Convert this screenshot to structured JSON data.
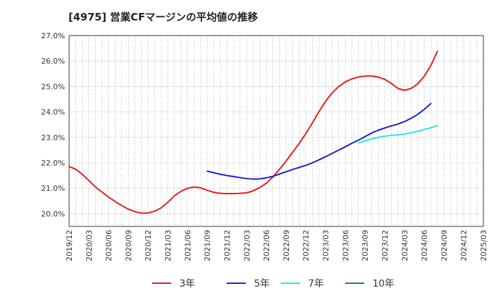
{
  "chart_data": {
    "type": "line",
    "title": "[4975]  営業CFマージンの平均値の推移",
    "xlabel": "",
    "ylabel": "",
    "ylim": [
      19.5,
      27.0
    ],
    "xlim": [
      "2019/12",
      "2025/03"
    ],
    "grid": true,
    "legend_position": "bottom",
    "y_ticks": [
      "20.0%",
      "21.0%",
      "22.0%",
      "23.0%",
      "24.0%",
      "25.0%",
      "26.0%",
      "27.0%"
    ],
    "x_ticks": [
      "2019/12",
      "2020/03",
      "2020/06",
      "2020/09",
      "2020/12",
      "2021/03",
      "2021/06",
      "2021/09",
      "2021/12",
      "2022/03",
      "2022/06",
      "2022/09",
      "2022/12",
      "2023/03",
      "2023/06",
      "2023/09",
      "2023/12",
      "2024/03",
      "2024/06",
      "2024/09",
      "2024/12",
      "2025/03"
    ],
    "series": [
      {
        "name": "3年",
        "color": "#e8191a",
        "points": [
          [
            "2019/12",
            21.85
          ],
          [
            "2020/01",
            21.75
          ],
          [
            "2020/02",
            21.55
          ],
          [
            "2020/03",
            21.3
          ],
          [
            "2020/04",
            21.05
          ],
          [
            "2020/05",
            20.85
          ],
          [
            "2020/06",
            20.65
          ],
          [
            "2020/07",
            20.48
          ],
          [
            "2020/08",
            20.32
          ],
          [
            "2020/09",
            20.18
          ],
          [
            "2020/10",
            20.08
          ],
          [
            "2020/11",
            20.02
          ],
          [
            "2020/12",
            20.03
          ],
          [
            "2021/01",
            20.1
          ],
          [
            "2021/02",
            20.23
          ],
          [
            "2021/03",
            20.45
          ],
          [
            "2021/04",
            20.7
          ],
          [
            "2021/05",
            20.88
          ],
          [
            "2021/06",
            21.0
          ],
          [
            "2021/07",
            21.05
          ],
          [
            "2021/08",
            21.02
          ],
          [
            "2021/09",
            20.92
          ],
          [
            "2021/10",
            20.84
          ],
          [
            "2021/11",
            20.8
          ],
          [
            "2021/12",
            20.79
          ],
          [
            "2022/01",
            20.79
          ],
          [
            "2022/02",
            20.8
          ],
          [
            "2022/03",
            20.82
          ],
          [
            "2022/04",
            20.9
          ],
          [
            "2022/05",
            21.03
          ],
          [
            "2022/06",
            21.2
          ],
          [
            "2022/07",
            21.45
          ],
          [
            "2022/08",
            21.75
          ],
          [
            "2022/09",
            22.07
          ],
          [
            "2022/10",
            22.42
          ],
          [
            "2022/11",
            22.77
          ],
          [
            "2022/12",
            23.15
          ],
          [
            "2023/01",
            23.57
          ],
          [
            "2023/02",
            24.02
          ],
          [
            "2023/03",
            24.42
          ],
          [
            "2023/04",
            24.75
          ],
          [
            "2023/05",
            25.0
          ],
          [
            "2023/06",
            25.18
          ],
          [
            "2023/07",
            25.3
          ],
          [
            "2023/08",
            25.37
          ],
          [
            "2023/09",
            25.41
          ],
          [
            "2023/10",
            25.41
          ],
          [
            "2023/11",
            25.37
          ],
          [
            "2023/12",
            25.28
          ],
          [
            "2024/01",
            25.12
          ],
          [
            "2024/02",
            24.92
          ],
          [
            "2024/03",
            24.85
          ],
          [
            "2024/04",
            24.92
          ],
          [
            "2024/05",
            25.1
          ],
          [
            "2024/06",
            25.4
          ],
          [
            "2024/07",
            25.82
          ],
          [
            "2024/08",
            26.38
          ]
        ]
      },
      {
        "name": "5年",
        "color": "#1a1adb",
        "points": [
          [
            "2021/09",
            21.67
          ],
          [
            "2021/10",
            21.61
          ],
          [
            "2021/11",
            21.55
          ],
          [
            "2021/12",
            21.5
          ],
          [
            "2022/01",
            21.46
          ],
          [
            "2022/02",
            21.42
          ],
          [
            "2022/03",
            21.38
          ],
          [
            "2022/04",
            21.36
          ],
          [
            "2022/05",
            21.37
          ],
          [
            "2022/06",
            21.41
          ],
          [
            "2022/07",
            21.47
          ],
          [
            "2022/08",
            21.56
          ],
          [
            "2022/09",
            21.65
          ],
          [
            "2022/10",
            21.74
          ],
          [
            "2022/11",
            21.82
          ],
          [
            "2022/12",
            21.9
          ],
          [
            "2023/01",
            22.0
          ],
          [
            "2023/02",
            22.12
          ],
          [
            "2023/03",
            22.24
          ],
          [
            "2023/04",
            22.37
          ],
          [
            "2023/05",
            22.5
          ],
          [
            "2023/06",
            22.63
          ],
          [
            "2023/07",
            22.77
          ],
          [
            "2023/08",
            22.89
          ],
          [
            "2023/09",
            23.03
          ],
          [
            "2023/10",
            23.17
          ],
          [
            "2023/11",
            23.28
          ],
          [
            "2023/12",
            23.37
          ],
          [
            "2024/01",
            23.45
          ],
          [
            "2024/02",
            23.52
          ],
          [
            "2024/03",
            23.62
          ],
          [
            "2024/04",
            23.75
          ],
          [
            "2024/05",
            23.9
          ],
          [
            "2024/06",
            24.1
          ],
          [
            "2024/07",
            24.33
          ]
        ]
      },
      {
        "name": "7年",
        "color": "#22e8e8",
        "points": [
          [
            "2023/08",
            22.78
          ],
          [
            "2023/09",
            22.86
          ],
          [
            "2023/10",
            22.94
          ],
          [
            "2023/11",
            23.0
          ],
          [
            "2023/12",
            23.05
          ],
          [
            "2024/01",
            23.08
          ],
          [
            "2024/02",
            23.1
          ],
          [
            "2024/03",
            23.13
          ],
          [
            "2024/04",
            23.18
          ],
          [
            "2024/05",
            23.24
          ],
          [
            "2024/06",
            23.31
          ],
          [
            "2024/07",
            23.38
          ],
          [
            "2024/08",
            23.46
          ]
        ]
      },
      {
        "name": "10年",
        "color": "#1f8a1f",
        "points": []
      }
    ]
  }
}
